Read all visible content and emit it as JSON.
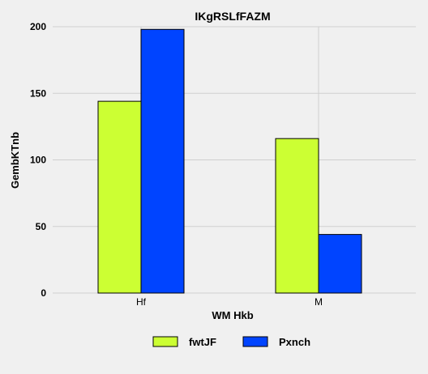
{
  "chart_data": {
    "type": "bar",
    "title": "IKgRSLfFAZM",
    "xlabel": "WM Hkb",
    "ylabel": "GembKTnb",
    "categories": [
      "Hf",
      "M"
    ],
    "series": [
      {
        "name": "fwtJF",
        "values": [
          144,
          116
        ],
        "color": "#ccff33"
      },
      {
        "name": "Pxnch",
        "values": [
          198,
          44
        ],
        "color": "#0044ff"
      }
    ],
    "ylim": [
      0,
      200
    ],
    "yticks": [
      0,
      50,
      100,
      150,
      200
    ],
    "grid": true,
    "legend_position": "bottom-center"
  }
}
